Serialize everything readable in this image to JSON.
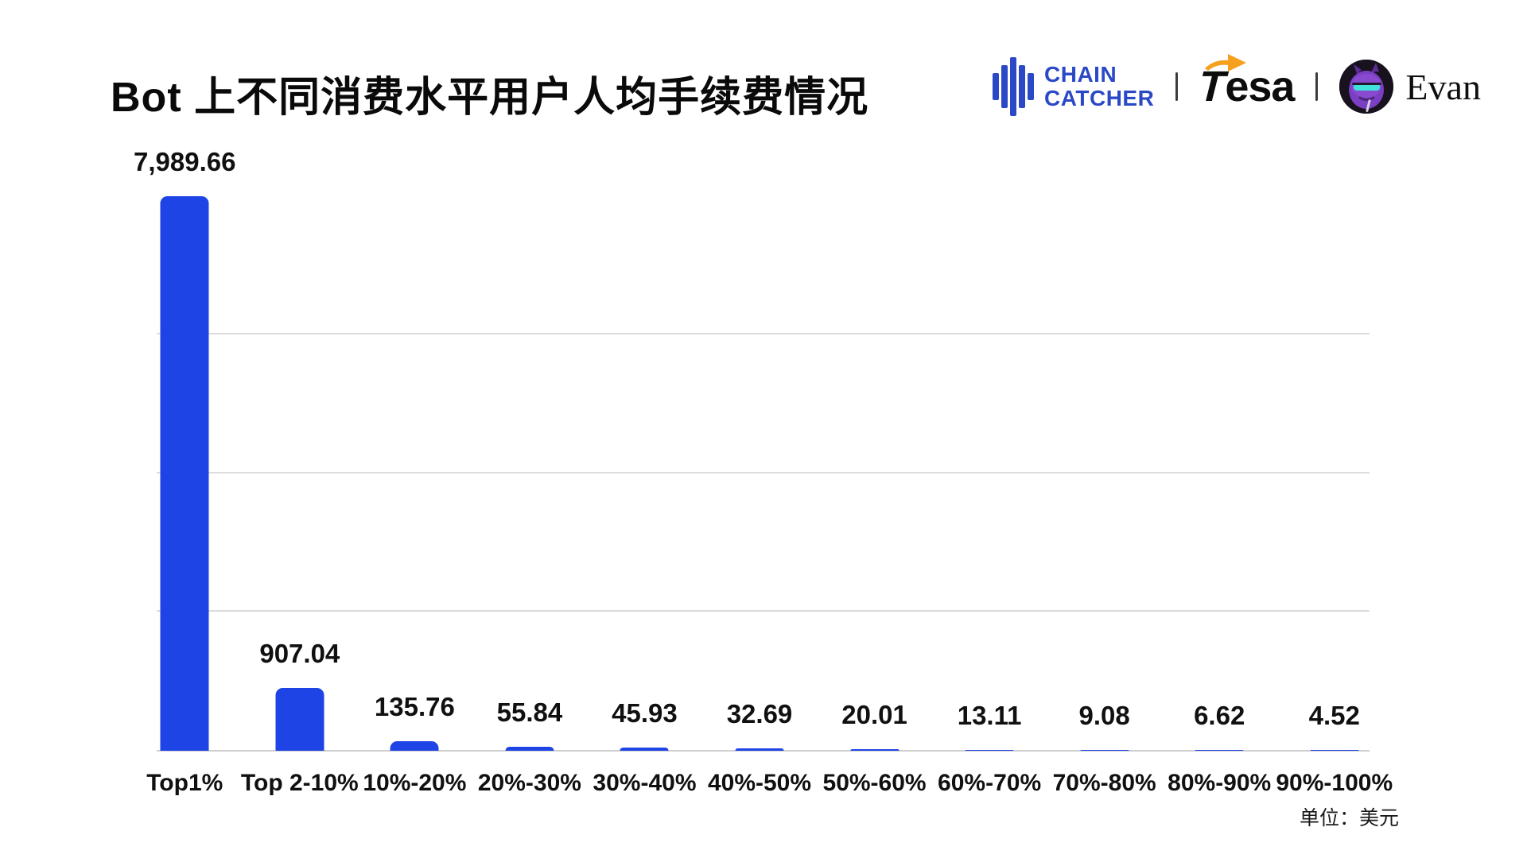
{
  "title": "Bot 上不同消费水平用户人均手续费情况",
  "header": {
    "logos": {
      "chaincatcher_line1": "CHAIN",
      "chaincatcher_line2": "CATCHER",
      "tesa_t": "T",
      "tesa_rest": "esa",
      "evan": "Evan"
    }
  },
  "chart_data": {
    "type": "bar",
    "title": "Bot 上不同消费水平用户人均手续费情况",
    "categories": [
      "Top1%",
      "Top 2-10%",
      "10%-20%",
      "20%-30%",
      "30%-40%",
      "40%-50%",
      "50%-60%",
      "60%-70%",
      "70%-80%",
      "80%-90%",
      "90%-100%"
    ],
    "values": [
      7989.66,
      907.04,
      135.76,
      55.84,
      45.93,
      32.69,
      20.01,
      13.11,
      9.08,
      6.62,
      4.52
    ],
    "value_labels": [
      "7,989.66",
      "907.04",
      "135.76",
      "55.84",
      "45.93",
      "32.69",
      "20.01",
      "13.11",
      "9.08",
      "6.62",
      "4.52"
    ],
    "xlabel": "",
    "ylabel": "",
    "ylim": [
      0,
      8000
    ],
    "gridlines": [
      2000,
      4000,
      6000
    ],
    "grid": "horizontal-only",
    "legend_position": "none",
    "bar_color": "#1e44e6",
    "gridline_color": "#dcdcdc",
    "unit_note": "单位：美元"
  },
  "colors": {
    "bar_blue": "#1e44e6",
    "chaincatcher_blue": "#2b49c6",
    "tesa_orange": "#f5a01e",
    "text_black": "#0a0a0a"
  }
}
